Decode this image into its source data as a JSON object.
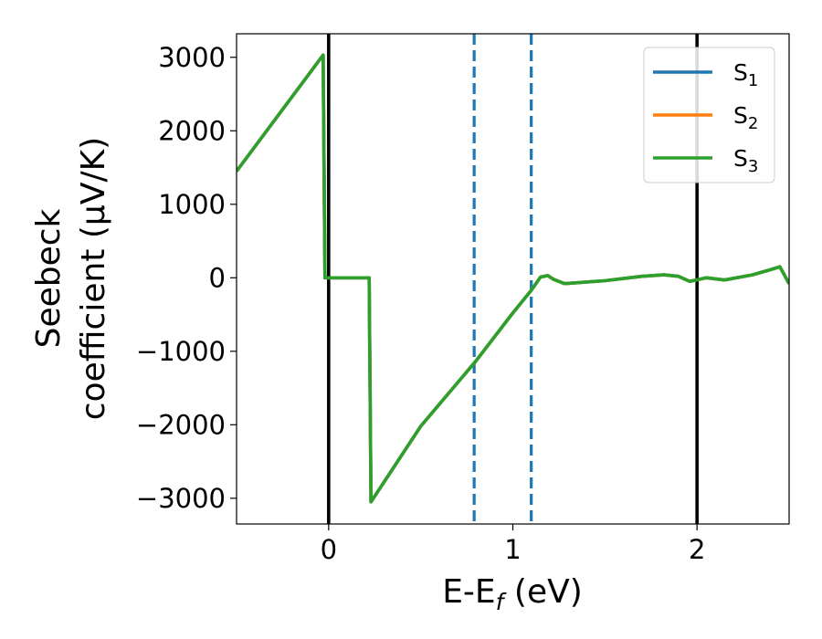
{
  "chart_data": {
    "type": "line",
    "title": "",
    "xlabel": "E-E$_f$ (eV)",
    "xlabel_parts": {
      "main": "E-E",
      "sub": "f",
      "tail": " (eV)"
    },
    "ylabel_lines": [
      "Seebeck",
      "coefficient  (μV/K)"
    ],
    "xlim": [
      -0.5,
      2.5
    ],
    "ylim": [
      -3350,
      3320
    ],
    "x_ticks": [
      0,
      1,
      2
    ],
    "x_tick_labels": [
      "0",
      "1",
      "2"
    ],
    "y_ticks": [
      3000,
      2000,
      1000,
      0,
      -1000,
      -2000,
      -3000
    ],
    "y_tick_labels": [
      "3000",
      "2000",
      "1000",
      "0",
      "−1000",
      "−2000",
      "−3000"
    ],
    "grid": false,
    "legend_position": "top-right",
    "vertical_lines": [
      {
        "x": 0,
        "style": "solid",
        "color": "#000000"
      },
      {
        "x": 2,
        "style": "solid",
        "color": "#000000"
      },
      {
        "x": 0.79,
        "style": "dashed",
        "color": "#1f77b4"
      },
      {
        "x": 1.1,
        "style": "dashed",
        "color": "#1f77b4"
      }
    ],
    "series": [
      {
        "name": "S1",
        "label_main": "S",
        "label_sub": "1",
        "color": "#1f77b4",
        "x": [
          -0.5,
          -0.03,
          -0.02,
          0.22,
          0.23,
          0.5,
          0.8,
          1.0,
          1.1,
          1.15,
          1.19,
          1.22,
          1.28,
          1.5,
          1.7,
          1.82,
          1.9,
          1.96,
          2.05,
          2.15,
          2.3,
          2.4,
          2.45,
          2.5
        ],
        "y": [
          1450,
          3030,
          0,
          0,
          -3050,
          -2020,
          -1130,
          -480,
          -170,
          10,
          30,
          -20,
          -80,
          -40,
          20,
          40,
          20,
          -50,
          0,
          -30,
          40,
          110,
          150,
          -80
        ]
      },
      {
        "name": "S2",
        "label_main": "S",
        "label_sub": "2",
        "color": "#ff7f0e",
        "x": [
          -0.5,
          -0.03,
          -0.02,
          0.22,
          0.23,
          0.5,
          0.8,
          1.0,
          1.1,
          1.15,
          1.19,
          1.22,
          1.28,
          1.5,
          1.7,
          1.82,
          1.9,
          1.96,
          2.05,
          2.15,
          2.3,
          2.4,
          2.45,
          2.5
        ],
        "y": [
          1450,
          3030,
          0,
          0,
          -3050,
          -2020,
          -1130,
          -480,
          -170,
          10,
          30,
          -20,
          -80,
          -40,
          20,
          40,
          20,
          -50,
          0,
          -30,
          40,
          110,
          150,
          -80
        ]
      },
      {
        "name": "S3",
        "label_main": "S",
        "label_sub": "3",
        "color": "#2ca02c",
        "x": [
          -0.5,
          -0.03,
          -0.02,
          0.22,
          0.23,
          0.5,
          0.8,
          1.0,
          1.1,
          1.15,
          1.19,
          1.22,
          1.28,
          1.5,
          1.7,
          1.82,
          1.9,
          1.96,
          2.05,
          2.15,
          2.3,
          2.4,
          2.45,
          2.5
        ],
        "y": [
          1450,
          3030,
          0,
          0,
          -3050,
          -2020,
          -1130,
          -480,
          -170,
          10,
          30,
          -20,
          -80,
          -40,
          20,
          40,
          20,
          -50,
          0,
          -30,
          40,
          110,
          150,
          -80
        ]
      }
    ]
  }
}
